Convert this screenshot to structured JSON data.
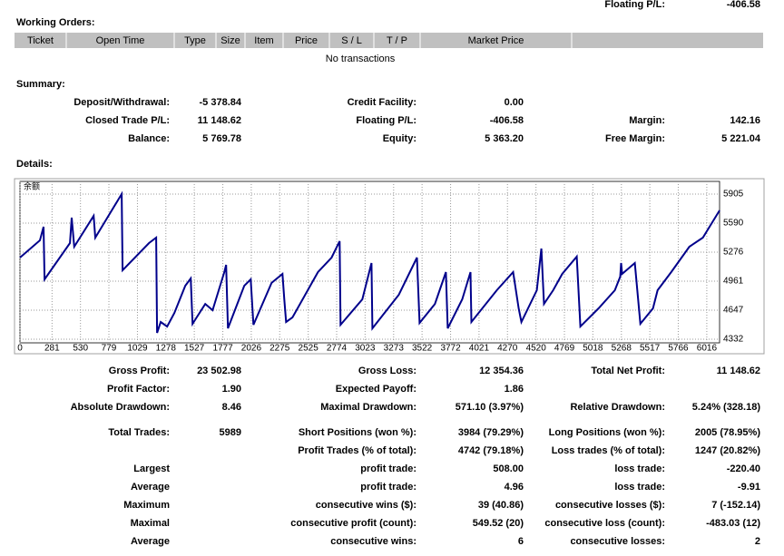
{
  "top": {
    "label": "Floating P/L:",
    "value": "-406.58"
  },
  "working_orders": {
    "title": "Working Orders:",
    "columns": [
      "Ticket",
      "Open Time",
      "Type",
      "Size",
      "Item",
      "Price",
      "S / L",
      "T / P",
      "Market Price"
    ],
    "empty": "No transactions"
  },
  "summary": {
    "title": "Summary:",
    "rows": [
      {
        "c1": [
          "Deposit/Withdrawal:",
          "-5 378.84"
        ],
        "c2": [
          "Credit Facility:",
          "0.00"
        ]
      },
      {
        "c1": [
          "Closed Trade P/L:",
          "11 148.62"
        ],
        "c2": [
          "Floating P/L:",
          "-406.58"
        ],
        "c3": [
          "Margin:",
          "142.16"
        ]
      },
      {
        "c1": [
          "Balance:",
          "5 769.78"
        ],
        "c2": [
          "Equity:",
          "5 363.20"
        ],
        "c3": [
          "Free Margin:",
          "5 221.04"
        ]
      }
    ]
  },
  "details": {
    "title": "Details:"
  },
  "chart_data": {
    "type": "line",
    "label": "余额",
    "color": "#00008b",
    "grid": true,
    "xlim": [
      0,
      6128
    ],
    "ylim": [
      4293,
      6042
    ],
    "xticks": [
      0,
      281,
      530,
      779,
      1029,
      1278,
      1527,
      1777,
      2026,
      2275,
      2525,
      2774,
      3023,
      3273,
      3522,
      3772,
      4021,
      4270,
      4520,
      4769,
      5018,
      5268,
      5517,
      5766,
      6016
    ],
    "yticks": [
      4332,
      4647,
      4961,
      5276,
      5590,
      5905
    ],
    "x": [
      0,
      175,
      207,
      215,
      438,
      453,
      475,
      645,
      660,
      891,
      899,
      1130,
      1193,
      1201,
      1233,
      1289,
      1353,
      1448,
      1496,
      1512,
      1623,
      1687,
      1790,
      1806,
      1822,
      1965,
      2021,
      2045,
      2204,
      2299,
      2315,
      2331,
      2387,
      2610,
      2729,
      2800,
      2808,
      2999,
      3079,
      3087,
      3318,
      3477,
      3500,
      3635,
      3731,
      3747,
      3874,
      3946,
      3954,
      4177,
      4320,
      4368,
      4392,
      4527,
      4567,
      4590,
      4670,
      4750,
      4877,
      4909,
      5068,
      5211,
      5258,
      5266,
      5274,
      5386,
      5434,
      5545,
      5585,
      5704,
      5863,
      5982,
      6128
    ],
    "values": [
      5217,
      5403,
      5551,
      4981,
      5374,
      5649,
      5335,
      5669,
      5433,
      5905,
      5079,
      5374,
      5433,
      4401,
      4519,
      4470,
      4617,
      4912,
      4991,
      4499,
      4715,
      4647,
      5059,
      5138,
      4450,
      4912,
      4981,
      4489,
      4942,
      5040,
      4765,
      4519,
      4568,
      5059,
      5217,
      5394,
      4489,
      4765,
      5158,
      4450,
      4814,
      5217,
      4509,
      4715,
      5059,
      4450,
      4765,
      5059,
      4519,
      4863,
      5059,
      4666,
      4519,
      4863,
      5315,
      4715,
      4863,
      5040,
      5227,
      4470,
      4666,
      4863,
      5010,
      5158,
      5040,
      5158,
      4499,
      4666,
      4863,
      5059,
      5335,
      5433,
      5728
    ]
  },
  "stats": {
    "rows": [
      {
        "c1": [
          "Gross Profit:",
          "23 502.98"
        ],
        "c2": [
          "Gross Loss:",
          "12 354.36"
        ],
        "c3": [
          "Total Net Profit:",
          "11 148.62"
        ]
      },
      {
        "c1": [
          "Profit Factor:",
          "1.90"
        ],
        "c2": [
          "Expected Payoff:",
          "1.86"
        ]
      },
      {
        "c1": [
          "Absolute Drawdown:",
          "8.46"
        ],
        "c2": [
          "Maximal Drawdown:",
          "571.10 (3.97%)"
        ],
        "c3": [
          "Relative Drawdown:",
          "5.24% (328.18)"
        ]
      },
      {
        "c1": [
          "Total Trades:",
          "5989"
        ],
        "c2": [
          "Short Positions (won %):",
          "3984 (79.29%)"
        ],
        "c3": [
          "Long Positions (won %):",
          "2005 (78.95%)"
        ]
      },
      {
        "c2": [
          "Profit Trades (% of total):",
          "4742 (79.18%)"
        ],
        "c3": [
          "Loss trades (% of total):",
          "1247 (20.82%)"
        ]
      },
      {
        "c1": [
          "Largest"
        ],
        "c2": [
          "profit trade:",
          "508.00"
        ],
        "c3": [
          "loss trade:",
          "-220.40"
        ]
      },
      {
        "c1": [
          "Average"
        ],
        "c2": [
          "profit trade:",
          "4.96"
        ],
        "c3": [
          "loss trade:",
          "-9.91"
        ]
      },
      {
        "c1": [
          "Maximum"
        ],
        "c2": [
          "consecutive wins ($):",
          "39 (40.86)"
        ],
        "c3": [
          "consecutive losses ($):",
          "7 (-152.14)"
        ]
      },
      {
        "c1": [
          "Maximal"
        ],
        "c2": [
          "consecutive profit (count):",
          "549.52 (20)"
        ],
        "c3": [
          "consecutive loss (count):",
          "-483.03 (12)"
        ]
      },
      {
        "c1": [
          "Average"
        ],
        "c2": [
          "consecutive wins:",
          "6"
        ],
        "c3": [
          "consecutive losses:",
          "2"
        ]
      }
    ]
  }
}
